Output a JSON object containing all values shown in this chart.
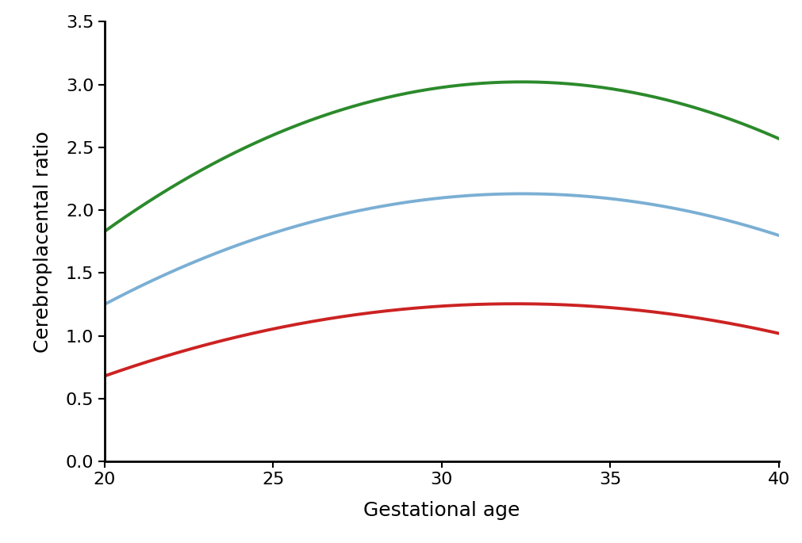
{
  "title": "",
  "xlabel": "Gestational age",
  "ylabel": "Cerebroplacental ratio",
  "xlim": [
    20,
    40
  ],
  "ylim": [
    0,
    3.5
  ],
  "xticks": [
    20,
    25,
    30,
    35,
    40
  ],
  "yticks": [
    0,
    0.5,
    1.0,
    1.5,
    2.0,
    2.5,
    3.0,
    3.5
  ],
  "green_points": [
    [
      20,
      1.83
    ],
    [
      32,
      3.02
    ],
    [
      40,
      2.57
    ]
  ],
  "blue_points": [
    [
      20,
      1.25
    ],
    [
      31,
      2.12
    ],
    [
      40,
      1.8
    ]
  ],
  "red_points": [
    [
      20,
      0.68
    ],
    [
      31,
      1.25
    ],
    [
      40,
      1.02
    ]
  ],
  "green_color": "#2b8a2b",
  "blue_color": "#7bafd4",
  "red_color": "#cc2222",
  "linewidth": 2.8,
  "background_color": "#ffffff",
  "axis_linewidth": 2.0,
  "tick_fontsize": 16,
  "label_fontsize": 18,
  "figsize": [
    10.12,
    6.85
  ],
  "dpi": 100
}
